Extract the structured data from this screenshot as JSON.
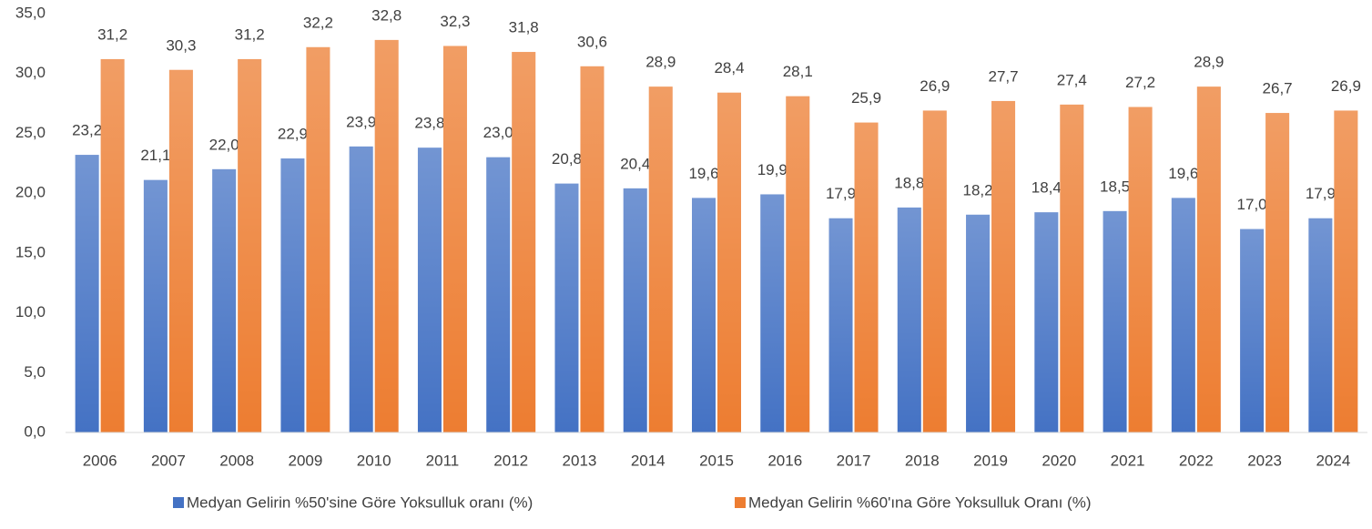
{
  "chart_data": {
    "type": "bar",
    "categories": [
      "2006",
      "2007",
      "2008",
      "2009",
      "2010",
      "2011",
      "2012",
      "2013",
      "2014",
      "2015",
      "2016",
      "2017",
      "2018",
      "2019",
      "2020",
      "2021",
      "2022",
      "2023",
      "2024"
    ],
    "series": [
      {
        "name": "Medyan Gelirin %50'sine Göre Yoksulluk oranı (%)",
        "color": "#4472c4",
        "values": [
          23.2,
          21.1,
          22.0,
          22.9,
          23.9,
          23.8,
          23.0,
          20.8,
          20.4,
          19.6,
          19.9,
          17.9,
          18.8,
          18.2,
          18.4,
          18.5,
          19.6,
          17.0,
          17.9
        ],
        "value_labels": [
          "23,2",
          "21,1",
          "22,0",
          "22,9",
          "23,9",
          "23,8",
          "23,0",
          "20,8",
          "20,4",
          "19,6",
          "19,9",
          "17,9",
          "18,8",
          "18,2",
          "18,4",
          "18,5",
          "19,6",
          "17,0",
          "17,9"
        ]
      },
      {
        "name": "Medyan Gelirin %60'ına Göre Yoksulluk Oranı (%)",
        "color": "#ed7d31",
        "values": [
          31.2,
          30.3,
          31.2,
          32.2,
          32.8,
          32.3,
          31.8,
          30.6,
          28.9,
          28.4,
          28.1,
          25.9,
          26.9,
          27.7,
          27.4,
          27.2,
          28.9,
          26.7,
          26.9
        ],
        "value_labels": [
          "31,2",
          "30,3",
          "31,2",
          "32,2",
          "32,8",
          "32,3",
          "31,8",
          "30,6",
          "28,9",
          "28,4",
          "28,1",
          "25,9",
          "26,9",
          "27,7",
          "27,4",
          "27,2",
          "28,9",
          "26,7",
          "26,9"
        ]
      }
    ],
    "ylim": [
      0,
      35
    ],
    "yticks": [
      {
        "value": 0,
        "label": "0,0"
      },
      {
        "value": 5,
        "label": "5,0"
      },
      {
        "value": 10,
        "label": "10,0"
      },
      {
        "value": 15,
        "label": "15,0"
      },
      {
        "value": 20,
        "label": "20,0"
      },
      {
        "value": 25,
        "label": "25,0"
      },
      {
        "value": 30,
        "label": "30,0"
      },
      {
        "value": 35,
        "label": "35,0"
      }
    ],
    "grid": false,
    "legend": "bottom"
  }
}
